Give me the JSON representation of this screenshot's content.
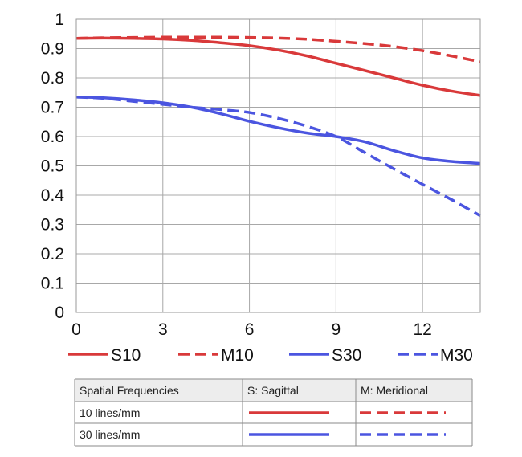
{
  "chart_data": {
    "type": "line",
    "xlim": [
      0,
      14
    ],
    "ylim": [
      0,
      1
    ],
    "x_ticks": [
      "0",
      "3",
      "6",
      "9",
      "12"
    ],
    "y_ticks": [
      "0",
      "0.1",
      "0.2",
      "0.3",
      "0.4",
      "0.5",
      "0.6",
      "0.7",
      "0.8",
      "0.9",
      "1"
    ],
    "grid": true,
    "legend_position": "bottom",
    "series": [
      {
        "name": "S10",
        "color": "#d9393a",
        "dash": false,
        "x": [
          0,
          1,
          2,
          3,
          4,
          5,
          6,
          7,
          8,
          9,
          10,
          11,
          12,
          13,
          14
        ],
        "y": [
          0.935,
          0.936,
          0.935,
          0.933,
          0.928,
          0.92,
          0.91,
          0.895,
          0.875,
          0.85,
          0.825,
          0.8,
          0.775,
          0.755,
          0.74
        ]
      },
      {
        "name": "M10",
        "color": "#d9393a",
        "dash": true,
        "x": [
          0,
          1,
          2,
          3,
          4,
          5,
          6,
          7,
          8,
          9,
          10,
          11,
          12,
          13,
          14
        ],
        "y": [
          0.935,
          0.937,
          0.938,
          0.939,
          0.939,
          0.939,
          0.938,
          0.936,
          0.932,
          0.925,
          0.917,
          0.907,
          0.893,
          0.875,
          0.855
        ]
      },
      {
        "name": "S30",
        "color": "#4b55e0",
        "dash": false,
        "x": [
          0,
          1,
          2,
          3,
          4,
          5,
          6,
          7,
          8,
          9,
          10,
          11,
          12,
          13,
          14
        ],
        "y": [
          0.735,
          0.732,
          0.725,
          0.715,
          0.7,
          0.678,
          0.652,
          0.63,
          0.612,
          0.6,
          0.582,
          0.552,
          0.527,
          0.515,
          0.508
        ]
      },
      {
        "name": "M30",
        "color": "#4b55e0",
        "dash": true,
        "x": [
          0,
          1,
          2,
          3,
          4,
          5,
          6,
          7,
          8,
          9,
          10,
          11,
          12,
          13,
          14
        ],
        "y": [
          0.735,
          0.73,
          0.72,
          0.71,
          0.7,
          0.692,
          0.682,
          0.662,
          0.635,
          0.6,
          0.545,
          0.49,
          0.437,
          0.385,
          0.33
        ]
      }
    ]
  },
  "legend": [
    {
      "label": "S10",
      "color": "#d9393a",
      "dash": false
    },
    {
      "label": "M10",
      "color": "#d9393a",
      "dash": true
    },
    {
      "label": "S30",
      "color": "#4b55e0",
      "dash": false
    },
    {
      "label": "M30",
      "color": "#4b55e0",
      "dash": true
    }
  ],
  "table": {
    "headers": [
      "Spatial Frequencies",
      "S: Sagittal",
      "M: Meridional"
    ],
    "rows": [
      {
        "label": "10 lines/mm",
        "color": "#d9393a"
      },
      {
        "label": "30 lines/mm",
        "color": "#4b55e0"
      }
    ]
  }
}
